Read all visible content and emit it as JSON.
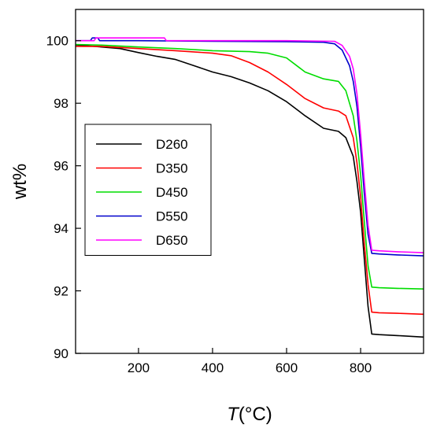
{
  "chart_data": {
    "type": "line",
    "title": "",
    "xlabel_italic": "T",
    "xlabel_rest": "(°C)",
    "ylabel": "wt%",
    "xlim": [
      30,
      970
    ],
    "ylim": [
      90,
      101
    ],
    "xticks": [
      200,
      400,
      600,
      800
    ],
    "yticks": [
      90,
      92,
      94,
      96,
      98,
      100
    ],
    "grid": false,
    "legend_position": "middle-left",
    "series": [
      {
        "name": "D260",
        "color": "#000000",
        "points": [
          [
            30,
            99.87
          ],
          [
            100,
            99.8
          ],
          [
            150,
            99.75
          ],
          [
            200,
            99.62
          ],
          [
            250,
            99.5
          ],
          [
            300,
            99.4
          ],
          [
            350,
            99.2
          ],
          [
            400,
            99.0
          ],
          [
            450,
            98.85
          ],
          [
            500,
            98.65
          ],
          [
            550,
            98.4
          ],
          [
            600,
            98.05
          ],
          [
            650,
            97.6
          ],
          [
            700,
            97.2
          ],
          [
            740,
            97.1
          ],
          [
            760,
            96.9
          ],
          [
            780,
            96.3
          ],
          [
            790,
            95.5
          ],
          [
            800,
            94.5
          ],
          [
            810,
            93.0
          ],
          [
            820,
            91.5
          ],
          [
            830,
            90.62
          ],
          [
            850,
            90.6
          ],
          [
            900,
            90.57
          ],
          [
            970,
            90.52
          ]
        ]
      },
      {
        "name": "D350",
        "color": "#ff0000",
        "points": [
          [
            30,
            99.82
          ],
          [
            100,
            99.82
          ],
          [
            200,
            99.75
          ],
          [
            300,
            99.68
          ],
          [
            400,
            99.6
          ],
          [
            450,
            99.52
          ],
          [
            500,
            99.3
          ],
          [
            550,
            99.0
          ],
          [
            600,
            98.6
          ],
          [
            650,
            98.15
          ],
          [
            700,
            97.85
          ],
          [
            740,
            97.75
          ],
          [
            760,
            97.6
          ],
          [
            780,
            96.9
          ],
          [
            790,
            96.1
          ],
          [
            800,
            95.0
          ],
          [
            810,
            93.5
          ],
          [
            820,
            92.2
          ],
          [
            830,
            91.32
          ],
          [
            850,
            91.3
          ],
          [
            900,
            91.28
          ],
          [
            970,
            91.25
          ]
        ]
      },
      {
        "name": "D450",
        "color": "#00dd00",
        "points": [
          [
            30,
            99.88
          ],
          [
            100,
            99.86
          ],
          [
            200,
            99.8
          ],
          [
            300,
            99.75
          ],
          [
            400,
            99.68
          ],
          [
            500,
            99.65
          ],
          [
            550,
            99.6
          ],
          [
            600,
            99.45
          ],
          [
            650,
            99.0
          ],
          [
            700,
            98.78
          ],
          [
            740,
            98.7
          ],
          [
            760,
            98.4
          ],
          [
            780,
            97.6
          ],
          [
            790,
            96.8
          ],
          [
            800,
            95.7
          ],
          [
            810,
            94.2
          ],
          [
            820,
            92.8
          ],
          [
            830,
            92.12
          ],
          [
            850,
            92.1
          ],
          [
            900,
            92.08
          ],
          [
            970,
            92.06
          ]
        ]
      },
      {
        "name": "D550",
        "color": "#0000cc",
        "points": [
          [
            30,
            100.0
          ],
          [
            70,
            100.0
          ],
          [
            75,
            100.09
          ],
          [
            90,
            100.09
          ],
          [
            95,
            100.0
          ],
          [
            200,
            100.0
          ],
          [
            400,
            99.98
          ],
          [
            600,
            99.97
          ],
          [
            700,
            99.95
          ],
          [
            730,
            99.9
          ],
          [
            750,
            99.7
          ],
          [
            770,
            99.2
          ],
          [
            780,
            98.7
          ],
          [
            790,
            97.9
          ],
          [
            800,
            96.6
          ],
          [
            810,
            95.1
          ],
          [
            820,
            93.8
          ],
          [
            830,
            93.2
          ],
          [
            850,
            93.18
          ],
          [
            900,
            93.15
          ],
          [
            970,
            93.12
          ]
        ]
      },
      {
        "name": "D650",
        "color": "#ff00ff",
        "points": [
          [
            30,
            100.0
          ],
          [
            80,
            100.0
          ],
          [
            85,
            100.09
          ],
          [
            270,
            100.09
          ],
          [
            275,
            100.0
          ],
          [
            400,
            100.0
          ],
          [
            600,
            100.0
          ],
          [
            730,
            99.98
          ],
          [
            750,
            99.85
          ],
          [
            770,
            99.5
          ],
          [
            780,
            99.1
          ],
          [
            790,
            98.3
          ],
          [
            800,
            97.0
          ],
          [
            810,
            95.5
          ],
          [
            820,
            94.1
          ],
          [
            830,
            93.3
          ],
          [
            850,
            93.28
          ],
          [
            900,
            93.25
          ],
          [
            970,
            93.22
          ]
        ]
      }
    ]
  }
}
